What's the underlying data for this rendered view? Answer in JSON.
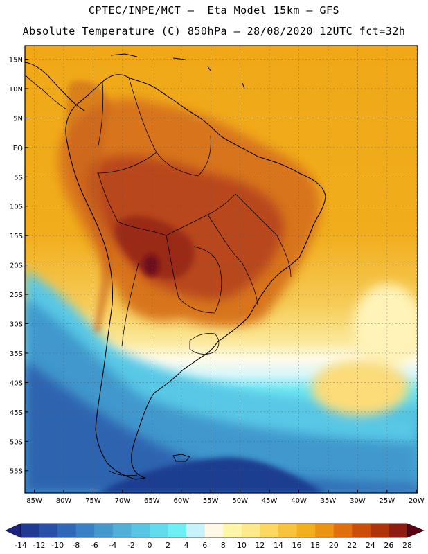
{
  "title_line1": "CPTEC/INPE/MCT –  Eta Model 15km – GFS",
  "title_line2": "Absolute Temperature (C) 850hPa – 28/08/2020 12UTC fct=32h",
  "lat_labels": [
    "15N",
    "10N",
    "5N",
    "EQ",
    "5S",
    "10S",
    "15S",
    "20S",
    "25S",
    "30S",
    "35S",
    "40S",
    "45S",
    "50S",
    "55S"
  ],
  "lat_values": [
    15,
    10,
    5,
    0,
    -5,
    -10,
    -15,
    -20,
    -25,
    -30,
    -35,
    -40,
    -45,
    -50,
    -55
  ],
  "lon_labels": [
    "85W",
    "80W",
    "75W",
    "70W",
    "65W",
    "60W",
    "55W",
    "50W",
    "45W",
    "40W",
    "35W",
    "30W",
    "25W",
    "20W"
  ],
  "lon_values": [
    -85,
    -80,
    -75,
    -70,
    -65,
    -60,
    -55,
    -50,
    -45,
    -40,
    -35,
    -30,
    -25,
    -20
  ],
  "colorbar": {
    "labels": [
      "-14",
      "-12",
      "-10",
      "-8",
      "-6",
      "-4",
      "-2",
      "0",
      "2",
      "4",
      "6",
      "8",
      "10",
      "12",
      "14",
      "16",
      "18",
      "20",
      "22",
      "24",
      "26",
      "28"
    ],
    "under_color": "#1a237e",
    "over_color": "#5c0016",
    "colors": [
      "#1f3a93",
      "#2750a8",
      "#2f68b8",
      "#3a80c4",
      "#4598cc",
      "#4fb0d8",
      "#56c6e4",
      "#60dcee",
      "#6cf0f6",
      "#c8f2fa",
      "#fff8e6",
      "#fff5a8",
      "#fde98a",
      "#fbd860",
      "#f7c43c",
      "#f2b01c",
      "#eb9412",
      "#e06e0a",
      "#cc4c08",
      "#b0320a",
      "#8e1c10"
    ]
  },
  "legend_colors": {
    "ocean_warm": "#f2b01c",
    "land_hot": "#a83212",
    "cold_ocean": "#4a86c6"
  }
}
